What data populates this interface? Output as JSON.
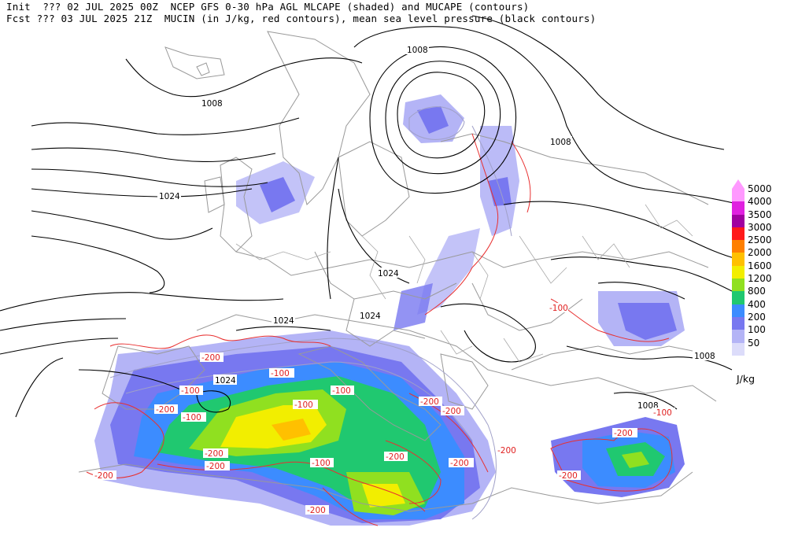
{
  "header": {
    "line1": "Init  ??? 02 JUL 2025 00Z  NCEP GFS 0-30 hPa AGL MLCAPE (shaded) and MUCAPE (contours)",
    "line2": "Fcst ??? 03 JUL 2025 21Z  MUCIN (in J/kg, red contours), mean sea level pressure (black contours)"
  },
  "legend": {
    "units": "J/kg",
    "levels": [
      {
        "label": "5000",
        "color": "#ff99ff"
      },
      {
        "label": "4000",
        "color": "#e020e0"
      },
      {
        "label": "3500",
        "color": "#a000a0"
      },
      {
        "label": "3000",
        "color": "#ff1a1a"
      },
      {
        "label": "2500",
        "color": "#ff7f00"
      },
      {
        "label": "2000",
        "color": "#ffc000"
      },
      {
        "label": "1600",
        "color": "#f2ee00"
      },
      {
        "label": "1200",
        "color": "#90e020"
      },
      {
        "label": "800",
        "color": "#20c870"
      },
      {
        "label": "400",
        "color": "#3c8cff"
      },
      {
        "label": "200",
        "color": "#7878f0"
      },
      {
        "label": "100",
        "color": "#b4b4f6"
      },
      {
        "label": "50",
        "color": "#dcdcfa"
      }
    ]
  },
  "isobar_labels": [
    "1008",
    "1008",
    "1008",
    "1024",
    "1024",
    "1024",
    "1024",
    "1024",
    "1008",
    "1008"
  ],
  "cin_labels": [
    "-100",
    "-200",
    "-100",
    "-200",
    "-100",
    "-100",
    "-200",
    "-200",
    "-200",
    "-200",
    "-100",
    "-200",
    "-200",
    "-200",
    "-200",
    "-200",
    "-100",
    "-100",
    "-200",
    "-200",
    "-100"
  ]
}
